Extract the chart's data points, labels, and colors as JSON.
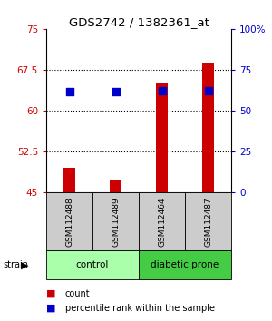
{
  "title": "GDS2742 / 1382361_at",
  "samples": [
    "GSM112488",
    "GSM112489",
    "GSM112464",
    "GSM112487"
  ],
  "groups": [
    "control",
    "control",
    "diabetic prone",
    "diabetic prone"
  ],
  "count_values": [
    49.5,
    47.2,
    65.2,
    68.8
  ],
  "percentile_values": [
    61.5,
    61.5,
    62.5,
    62.5
  ],
  "count_color": "#cc0000",
  "percentile_color": "#0000cc",
  "ylim_left": [
    45,
    75
  ],
  "ylim_right": [
    0,
    100
  ],
  "yticks_left": [
    45,
    52.5,
    60,
    67.5,
    75
  ],
  "yticks_right": [
    0,
    25,
    50,
    75,
    100
  ],
  "ytick_labels_right": [
    "0",
    "25",
    "50",
    "75",
    "100%"
  ],
  "bar_bottom": 45,
  "control_color": "#aaffaa",
  "diabetic_color": "#44cc44",
  "sample_box_color": "#cccccc",
  "bar_width": 0.25,
  "percentile_size": 35,
  "legend_count": "count",
  "legend_percentile": "percentile rank within the sample"
}
